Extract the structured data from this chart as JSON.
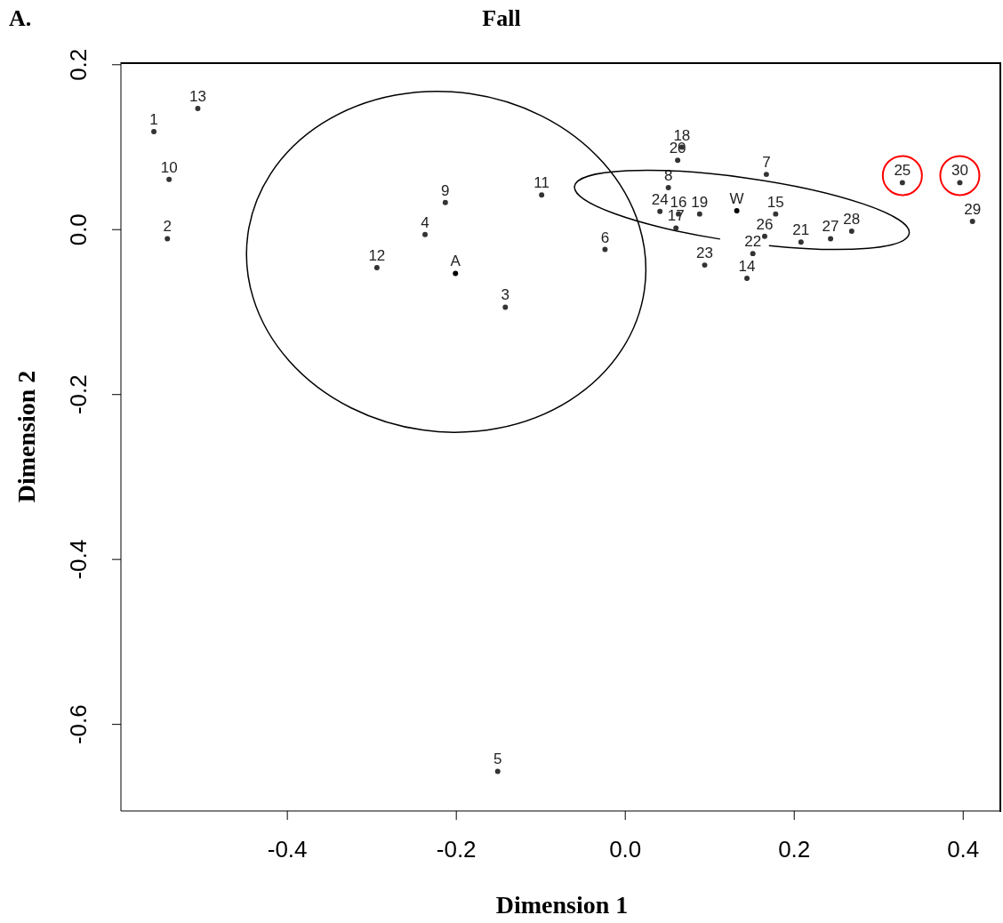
{
  "chart_data": {
    "type": "scatter",
    "title": "Fall",
    "xlabel": "Dimension 1",
    "ylabel": "Dimension 2",
    "annotations": [
      "A.",
      {
        "text": "1",
        "x": -0.558,
        "y": 0.119
      },
      {
        "text": "2",
        "x": -0.542,
        "y": -0.011
      },
      {
        "text": "3",
        "x": -0.142,
        "y": -0.094
      },
      {
        "text": "4",
        "x": -0.237,
        "y": -0.006
      },
      {
        "text": "5",
        "x": -0.151,
        "y": -0.657
      },
      {
        "text": "6",
        "x": -0.024,
        "y": -0.024
      },
      {
        "text": "7",
        "x": 0.167,
        "y": 0.067
      },
      {
        "text": "8",
        "x": 0.051,
        "y": 0.051
      },
      {
        "text": "9",
        "x": -0.213,
        "y": 0.033
      },
      {
        "text": "10",
        "x": -0.54,
        "y": 0.061
      },
      {
        "text": "11",
        "x": -0.099,
        "y": 0.042
      },
      {
        "text": "12",
        "x": -0.294,
        "y": -0.046
      },
      {
        "text": "13",
        "x": -0.506,
        "y": 0.147
      },
      {
        "text": "14",
        "x": 0.144,
        "y": -0.059
      },
      {
        "text": "15",
        "x": 0.178,
        "y": 0.019
      },
      {
        "text": "16",
        "x": 0.063,
        "y": 0.019
      },
      {
        "text": "17",
        "x": 0.06,
        "y": 0.002
      },
      {
        "text": "18",
        "x": 0.067,
        "y": 0.1
      },
      {
        "text": "19",
        "x": 0.088,
        "y": 0.019
      },
      {
        "text": "20",
        "x": 0.062,
        "y": 0.084
      },
      {
        "text": "21",
        "x": 0.208,
        "y": -0.015
      },
      {
        "text": "22",
        "x": 0.151,
        "y": -0.029
      },
      {
        "text": "23",
        "x": 0.094,
        "y": -0.043
      },
      {
        "text": "24",
        "x": 0.041,
        "y": 0.022
      },
      {
        "text": "25",
        "x": 0.328,
        "y": 0.057
      },
      {
        "text": "26",
        "x": 0.165,
        "y": -0.008
      },
      {
        "text": "27",
        "x": 0.243,
        "y": -0.011
      },
      {
        "text": "28",
        "x": 0.268,
        "y": -0.002
      },
      {
        "text": "29",
        "x": 0.411,
        "y": 0.01
      },
      {
        "text": "30",
        "x": 0.396,
        "y": 0.057
      },
      {
        "text": "A",
        "x": -0.201,
        "y": -0.053
      },
      {
        "text": "W",
        "x": 0.132,
        "y": 0.023
      }
    ],
    "xlim": [
      -0.597,
      0.445
    ],
    "ylim": [
      -0.705,
      0.203
    ],
    "xticks": [
      -0.4,
      -0.2,
      {
        "value": 0,
        "label": "0.0"
      },
      0.2,
      0.4
    ],
    "yticks": [
      -0.6,
      -0.4,
      -0.2,
      {
        "value": 0,
        "label": "0.0"
      },
      0.2
    ],
    "grid": false,
    "legend": false,
    "series": [
      {
        "marker": "circle",
        "color": "#333333",
        "x": [
          -0.558,
          -0.542,
          -0.142,
          -0.237,
          -0.151,
          -0.024,
          0.167,
          0.051,
          -0.213,
          -0.54,
          -0.099,
          -0.294,
          -0.506,
          0.144,
          0.178,
          0.063,
          0.06,
          0.067,
          0.088,
          0.062,
          0.208,
          0.151,
          0.094,
          0.041,
          0.328,
          0.165,
          0.243,
          0.268,
          0.411,
          0.396
        ],
        "values": [
          0.119,
          -0.011,
          -0.094,
          -0.006,
          -0.657,
          -0.024,
          0.067,
          0.051,
          0.033,
          0.061,
          0.042,
          -0.046,
          0.147,
          -0.059,
          0.019,
          0.019,
          0.002,
          0.1,
          0.019,
          0.084,
          -0.015,
          -0.029,
          -0.043,
          0.022,
          0.057,
          -0.008,
          -0.011,
          -0.002,
          0.01,
          0.057
        ]
      },
      {
        "marker": "circle",
        "color": "#000000",
        "x": [
          -0.201,
          0.132
        ],
        "values": [
          -0.053,
          0.023
        ]
      }
    ]
  }
}
